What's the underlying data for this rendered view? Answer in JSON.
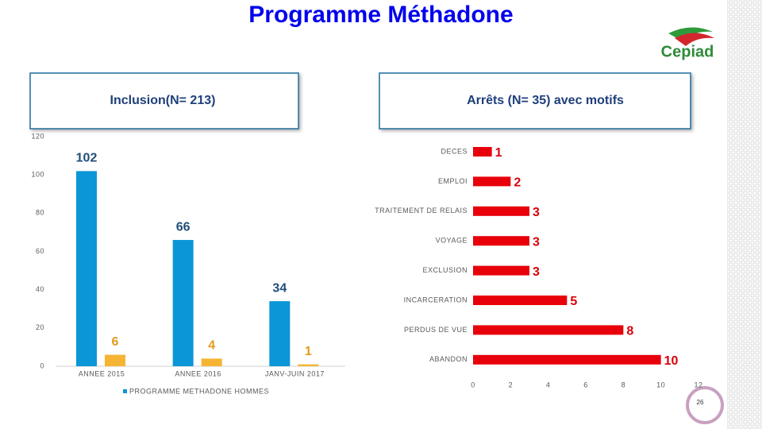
{
  "title": "Programme Méthadone",
  "logo": "Cepiad",
  "page_number": "26",
  "chart_data": [
    {
      "type": "bar",
      "title": "Inclusion(N= 213)",
      "categories": [
        "ANNEE 2015",
        "ANNEE 2016",
        "JANV-JUIN 2017"
      ],
      "series": [
        {
          "name": "PROGRAMME METHADONE HOMMES",
          "color": "#0b96d8",
          "values": [
            102,
            66,
            34
          ]
        },
        {
          "color": "#f5b533",
          "values": [
            6,
            4,
            1
          ]
        }
      ],
      "ylim": [
        0,
        120
      ],
      "yticks": [
        0,
        20,
        40,
        60,
        80,
        100,
        120
      ],
      "grid": false,
      "legend": "bottom"
    },
    {
      "type": "hbar",
      "title": "Arrêts (N= 35) avec motifs",
      "categories": [
        "DECES",
        "EMPLOI",
        "TRAITEMENT DE RELAIS",
        "VOYAGE",
        "EXCLUSION",
        "INCARCERATION",
        "PERDUS DE VUE",
        "ABANDON"
      ],
      "values": [
        1,
        2,
        3,
        3,
        3,
        5,
        8,
        10
      ],
      "color": "#e8000b",
      "xlim": [
        0,
        12
      ],
      "xticks": [
        0,
        2,
        4,
        6,
        8,
        10,
        12
      ],
      "grid": false
    }
  ]
}
